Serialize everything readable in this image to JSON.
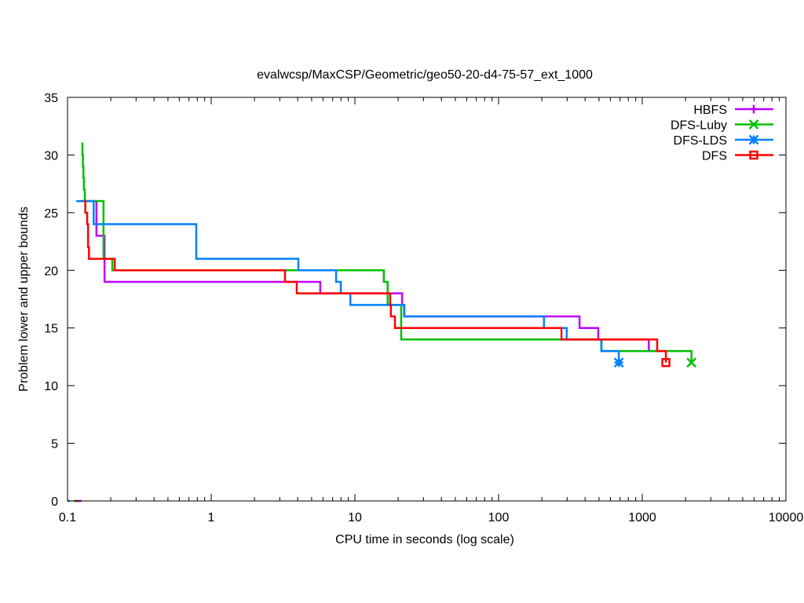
{
  "chart_data": {
    "type": "line",
    "title": "evalwcsp/MaxCSP/Geometric/geo50-20-d4-75-57_ext_1000",
    "xlabel": "CPU time in seconds (log scale)",
    "ylabel": "Problem lower and upper bounds",
    "xscale": "log",
    "xlim": [
      0.1,
      10000
    ],
    "ylim": [
      0,
      35
    ],
    "xticks": [
      0.1,
      1,
      10,
      100,
      1000,
      10000
    ],
    "xtick_labels": [
      "0.1",
      "1",
      "10",
      "100",
      "1000",
      "10000"
    ],
    "yticks": [
      0,
      5,
      10,
      15,
      20,
      25,
      30,
      35
    ],
    "ytick_labels": [
      "0",
      "5",
      "10",
      "15",
      "20",
      "25",
      "30",
      "35"
    ],
    "grid": false,
    "legend_position": "top-right",
    "series": [
      {
        "name": "HBFS",
        "color": "#c000ff",
        "marker": "plus",
        "upper": [
          [
            0.12,
            26
          ],
          [
            0.159,
            23
          ],
          [
            0.181,
            19
          ],
          [
            5.74,
            18
          ],
          [
            21.3,
            17
          ],
          [
            22,
            16
          ],
          [
            366,
            15
          ],
          [
            494,
            14
          ],
          [
            1110,
            13
          ],
          [
            1300,
            13
          ]
        ],
        "lower": [
          [
            0.118,
            0
          ],
          [
            0.125,
            0
          ]
        ],
        "final_point": null
      },
      {
        "name": "DFS-Luby",
        "color": "#00c000",
        "marker": "cross",
        "upper": [
          [
            0.125,
            31
          ],
          [
            0.127,
            30
          ],
          [
            0.128,
            29
          ],
          [
            0.129,
            28
          ],
          [
            0.13,
            27
          ],
          [
            0.132,
            26
          ],
          [
            0.178,
            21
          ],
          [
            0.205,
            20
          ],
          [
            15.9,
            19
          ],
          [
            16.9,
            17
          ],
          [
            21.0,
            14
          ],
          [
            519,
            13
          ],
          [
            2200,
            12
          ]
        ],
        "lower": [
          [
            0.11,
            0
          ],
          [
            0.114,
            0
          ]
        ],
        "final_point": [
          2200,
          12
        ]
      },
      {
        "name": "DFS-LDS",
        "color": "#0080ff",
        "marker": "star",
        "upper": [
          [
            0.115,
            26
          ],
          [
            0.152,
            24
          ],
          [
            0.787,
            21
          ],
          [
            4.04,
            20
          ],
          [
            7.4,
            19
          ],
          [
            7.98,
            18
          ],
          [
            9.3,
            17
          ],
          [
            22.1,
            16
          ],
          [
            207,
            15
          ],
          [
            298,
            14
          ],
          [
            520,
            13
          ],
          [
            687,
            12
          ]
        ],
        "lower": [
          [
            0.1,
            0
          ],
          [
            0.104,
            0
          ]
        ],
        "final_point": [
          687,
          12
        ]
      },
      {
        "name": "DFS",
        "color": "#ff0000",
        "marker": "square",
        "upper": [
          [
            0.13,
            26
          ],
          [
            0.133,
            25
          ],
          [
            0.137,
            24
          ],
          [
            0.139,
            22
          ],
          [
            0.141,
            21
          ],
          [
            0.213,
            20
          ],
          [
            3.26,
            19
          ],
          [
            3.94,
            18
          ],
          [
            17.6,
            17
          ],
          [
            17.8,
            16
          ],
          [
            19.0,
            15
          ],
          [
            274,
            14
          ],
          [
            1270,
            13
          ],
          [
            1460,
            12
          ]
        ],
        "lower": [
          [
            0.114,
            0
          ],
          [
            0.118,
            0
          ]
        ],
        "final_point": [
          1460,
          12
        ]
      }
    ]
  }
}
